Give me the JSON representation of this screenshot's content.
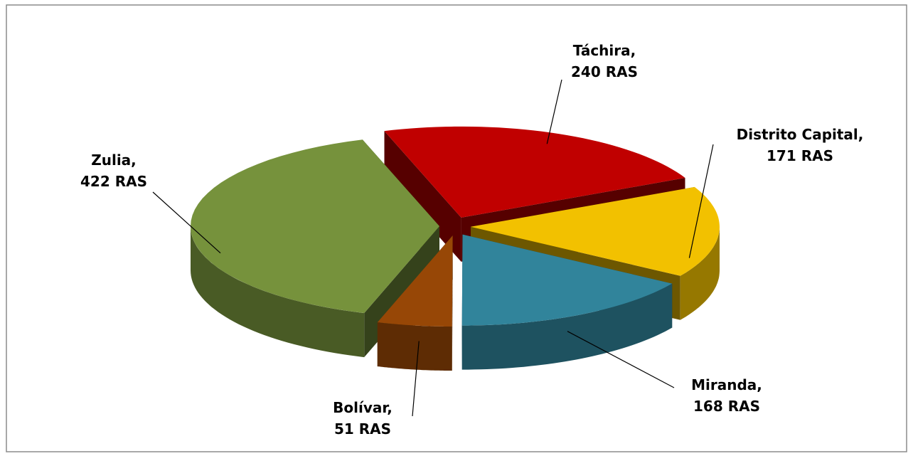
{
  "chart_data": {
    "type": "pie3d",
    "categories": [
      "Táchira",
      "Distrito Capital",
      "Miranda",
      "Bolívar",
      "Zulia"
    ],
    "values": [
      240,
      171,
      168,
      51,
      422
    ],
    "value_labels": [
      "Táchira, 240 RAS",
      "Distrito Capital, 171 RAS",
      "Miranda, 168 RAS",
      "Bolívar, 51 RAS",
      "Zulia, 422 RAS"
    ],
    "colors": [
      "#c00000",
      "#f2c100",
      "#31849b",
      "#974706",
      "#76923c"
    ]
  }
}
